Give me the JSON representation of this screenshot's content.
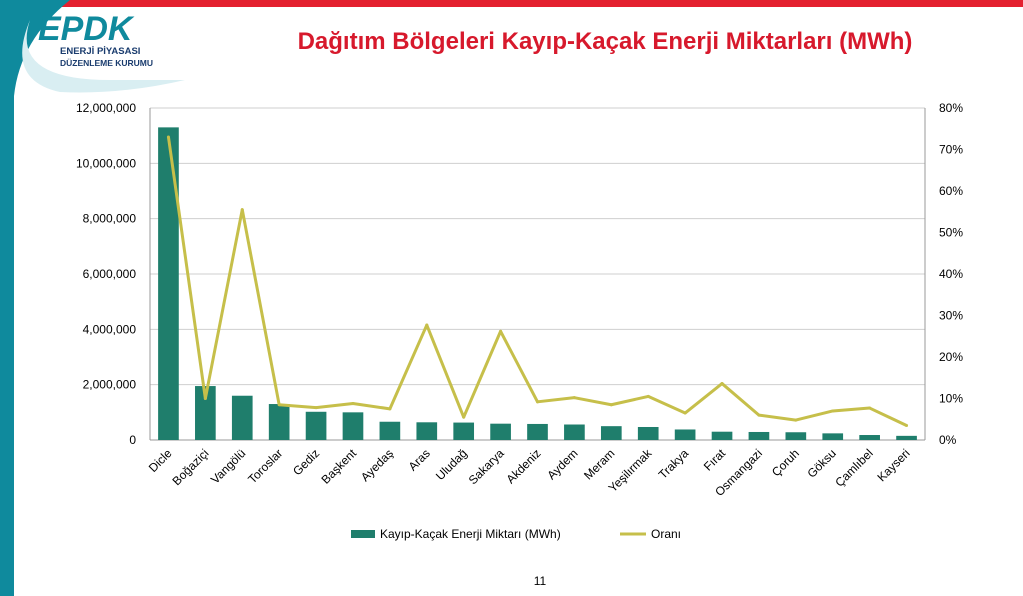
{
  "slide": {
    "title": "Dağıtım Bölgeleri Kayıp-Kaçak Enerji Miktarları (MWh)",
    "page_number": "11",
    "logo": {
      "mark": "EPDK",
      "line1": "ENERJİ PİYASASI",
      "line2": "DÜZENLEME KURUMU"
    },
    "colors": {
      "accent_red": "#e4202f",
      "teal": "#0f8a9d",
      "bar": "#1f7e6c",
      "line": "#c6bf4a"
    }
  },
  "chart_data": {
    "type": "bar",
    "title": "",
    "xlabel": "",
    "ylabel": "",
    "categories": [
      "Dicle",
      "Boğaziçi",
      "Vangölü",
      "Toroslar",
      "Gediz",
      "Başkent",
      "Ayedaş",
      "Aras",
      "Uludağ",
      "Sakarya",
      "Akdeniz",
      "Aydem",
      "Meram",
      "Yeşilırmak",
      "Trakya",
      "Fırat",
      "Osmangazi",
      "Çoruh",
      "Göksu",
      "Çamlıbel",
      "Kayseri"
    ],
    "series": [
      {
        "name": "Kayıp-Kaçak Enerji Miktarı (MWh)",
        "type": "bar",
        "axis": "left",
        "color": "#1f7e6c",
        "values": [
          11300000,
          1950000,
          1600000,
          1300000,
          1020000,
          1000000,
          660000,
          640000,
          630000,
          590000,
          580000,
          560000,
          500000,
          470000,
          380000,
          300000,
          290000,
          280000,
          240000,
          180000,
          150000
        ]
      },
      {
        "name": "Oranı",
        "type": "line",
        "axis": "right",
        "color": "#c6bf4a",
        "values": [
          0.73,
          0.1,
          0.555,
          0.085,
          0.078,
          0.088,
          0.075,
          0.277,
          0.055,
          0.262,
          0.092,
          0.102,
          0.085,
          0.105,
          0.065,
          0.136,
          0.06,
          0.048,
          0.07,
          0.077,
          0.035
        ]
      }
    ],
    "y_left": {
      "min": 0,
      "max": 12000000,
      "ticks": [
        0,
        2000000,
        4000000,
        6000000,
        8000000,
        10000000,
        12000000
      ],
      "tick_labels": [
        "0",
        "2,000,000",
        "4,000,000",
        "6,000,000",
        "8,000,000",
        "10,000,000",
        "12,000,000"
      ]
    },
    "y_right": {
      "min": 0,
      "max": 0.8,
      "ticks": [
        0,
        0.1,
        0.2,
        0.3,
        0.4,
        0.5,
        0.6,
        0.7,
        0.8
      ],
      "tick_labels": [
        "0%",
        "10%",
        "20%",
        "30%",
        "40%",
        "50%",
        "60%",
        "70%",
        "80%"
      ]
    },
    "grid": true,
    "legend": "bottom"
  }
}
